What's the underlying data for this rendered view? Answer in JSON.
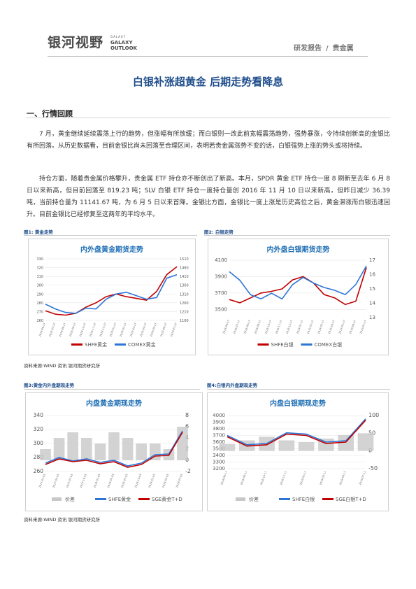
{
  "header": {
    "logo_cn": "银河视野",
    "logo_en_small": "GALAXY",
    "logo_en_line1": "GALAXY",
    "logo_en_line2": "OUTLOOK",
    "category": "研发报告",
    "separator": "/",
    "subcategory": "贵金属"
  },
  "title": "白银补涨超黄金 后期走势看降息",
  "section1": "一、行情回顾",
  "paragraphs": [
    "7 月，黄金继续延续震荡上行的趋势，但涨幅有所放缓；而白银则一改此前宽幅震荡趋势，强势暴涨，令持续创新高的金银比有所回落。从历史数据看，目前金银比尚未回落至合理区间，表明若贵金属涨势不变的话，白银强势上涨的势头或将持续。",
    "持仓方面，随着贵金属价格攀升，贵金属 ETF 持仓亦不断创出了新高。本月，SPDR 黄金 ETF 持仓一度 8 刷新至去年 6 月 8 日以来新高，但目前回落至 819.23 吨；SLV 白银 ETF 持仓一度持仓量创 2016 年 11 月 10 日以来新高，但昨日减少 36.39 吨，当前持仓量为 11141.67 吨，为 6 月 5 日以来首降。金银比方面，金银比一度上涨是历史高位之后，黄金滞涨而白银迅速回升。目前金银比已经修复至这两年的平均水平。"
  ],
  "figures": {
    "fig1_label": "图1: 黄金走势",
    "fig2_label": "图2: 白银走势",
    "fig3_label": "图3:黄金内外盘期现走势",
    "fig4_label": "图4:白银内外盘期现走势"
  },
  "source_text": "资料来源:WIND 资讯   银河期货研究所",
  "colors": {
    "red": "#c00000",
    "blue": "#2e75d6",
    "gray": "#c8c8c8",
    "title_blue": "#1f4e8c"
  },
  "chart_data": [
    {
      "type": "line",
      "title": "内外盘黄金期货走势",
      "x": [
        "2018-06-27",
        "2018-07-27",
        "2018-08-27",
        "2018-09-27",
        "2018-10-27",
        "2018-11-27",
        "2018-12-27",
        "2019-01-27",
        "2019-02-27",
        "2019-03-27",
        "2019-04-27",
        "2019-05-27",
        "2019-06-27",
        "2019-07-27"
      ],
      "series": [
        {
          "name": "SHFE黄金",
          "axis": "left",
          "values": [
            271,
            267,
            266,
            268,
            275,
            280,
            287,
            290,
            287,
            285,
            283,
            293,
            312,
            321
          ]
        },
        {
          "name": "COMEX黄金",
          "axis": "right",
          "values": [
            1252,
            1225,
            1205,
            1200,
            1230,
            1225,
            1280,
            1310,
            1320,
            1300,
            1280,
            1290,
            1400,
            1420
          ]
        }
      ],
      "left_ticks": [
        260,
        270,
        280,
        290,
        300,
        310,
        320,
        330
      ],
      "right_ticks": [
        1160,
        1210,
        1260,
        1310,
        1360,
        1410,
        1460,
        1510
      ],
      "ylim_left": [
        260,
        330
      ],
      "ylim_right": [
        1160,
        1510
      ]
    },
    {
      "type": "line",
      "title": "内外盘白银期货走势",
      "x": [
        "2018-06-27",
        "2018-07-27",
        "2018-08-27",
        "2018-09-27",
        "2018-10-27",
        "2018-11-27",
        "2018-12-27",
        "2019-01-27",
        "2019-02-27",
        "2019-03-27",
        "2019-04-27",
        "2019-05-27",
        "2019-06-27",
        "2019-07-27"
      ],
      "series": [
        {
          "name": "SHFE白银",
          "axis": "left",
          "values": [
            3620,
            3580,
            3640,
            3700,
            3720,
            3750,
            3860,
            3900,
            3820,
            3680,
            3640,
            3560,
            3600,
            4010
          ]
        },
        {
          "name": "COMEX白银",
          "axis": "right",
          "values": [
            16.2,
            15.6,
            14.6,
            14.3,
            14.7,
            14.3,
            15.3,
            15.8,
            15.4,
            15.1,
            14.9,
            14.6,
            15.3,
            16.6
          ]
        }
      ],
      "left_ticks": [
        3500,
        3700,
        3900,
        4100
      ],
      "right_ticks": [
        13,
        14,
        15,
        16,
        17
      ],
      "ylim_left": [
        3400,
        4100
      ],
      "ylim_right": [
        13,
        17
      ]
    },
    {
      "type": "line",
      "title": "内盘黄金期现走势",
      "x": [
        "2017-01-03",
        "2017-04-03",
        "2017-07-03",
        "2017-10-03",
        "2018-01-03",
        "2018-04-03",
        "2018-07-03",
        "2018-10-03",
        "2019-01-03",
        "2019-04-03",
        "2019-07-03"
      ],
      "series": [
        {
          "name": "价差",
          "axis": "right",
          "values": [
            2,
            4,
            5,
            4,
            3,
            5,
            4,
            3,
            3,
            2,
            6
          ]
        },
        {
          "name": "SHFE黄金",
          "axis": "left",
          "values": [
            272,
            280,
            275,
            278,
            273,
            276,
            268,
            272,
            284,
            285,
            318
          ]
        },
        {
          "name": "SGE黄金T+D",
          "axis": "left",
          "values": [
            270,
            278,
            274,
            276,
            271,
            274,
            266,
            270,
            282,
            283,
            316
          ]
        }
      ],
      "left_ticks": [
        260,
        280,
        300,
        320,
        340
      ],
      "right_ticks": [
        -2,
        0,
        2,
        4,
        6,
        8
      ],
      "ylim_left": [
        260,
        340
      ],
      "ylim_right": [
        -2,
        8
      ]
    },
    {
      "type": "line",
      "title": "内盘白银期现走势",
      "x": [
        "2018-06-11",
        "2018-08-11",
        "2018-10-11",
        "2018-12-11",
        "2019-02-11",
        "2019-04-11",
        "2019-06-11",
        "2019-07-11"
      ],
      "series": [
        {
          "name": "价差",
          "axis": "right",
          "values": [
            20,
            30,
            40,
            30,
            25,
            35,
            45,
            50
          ]
        },
        {
          "name": "SHFE白银",
          "axis": "left",
          "values": [
            3700,
            3560,
            3580,
            3740,
            3720,
            3600,
            3620,
            3950
          ]
        },
        {
          "name": "SGE白银T+D",
          "axis": "left",
          "values": [
            3680,
            3540,
            3560,
            3720,
            3700,
            3580,
            3600,
            3930
          ]
        }
      ],
      "left_ticks": [
        3200,
        3300,
        3400,
        3500,
        3600,
        3700,
        3800,
        3900,
        4000
      ],
      "right_ticks": [
        -50,
        0,
        50,
        100
      ],
      "ylim_left": [
        3200,
        4000
      ],
      "ylim_right": [
        -50,
        100
      ]
    }
  ]
}
